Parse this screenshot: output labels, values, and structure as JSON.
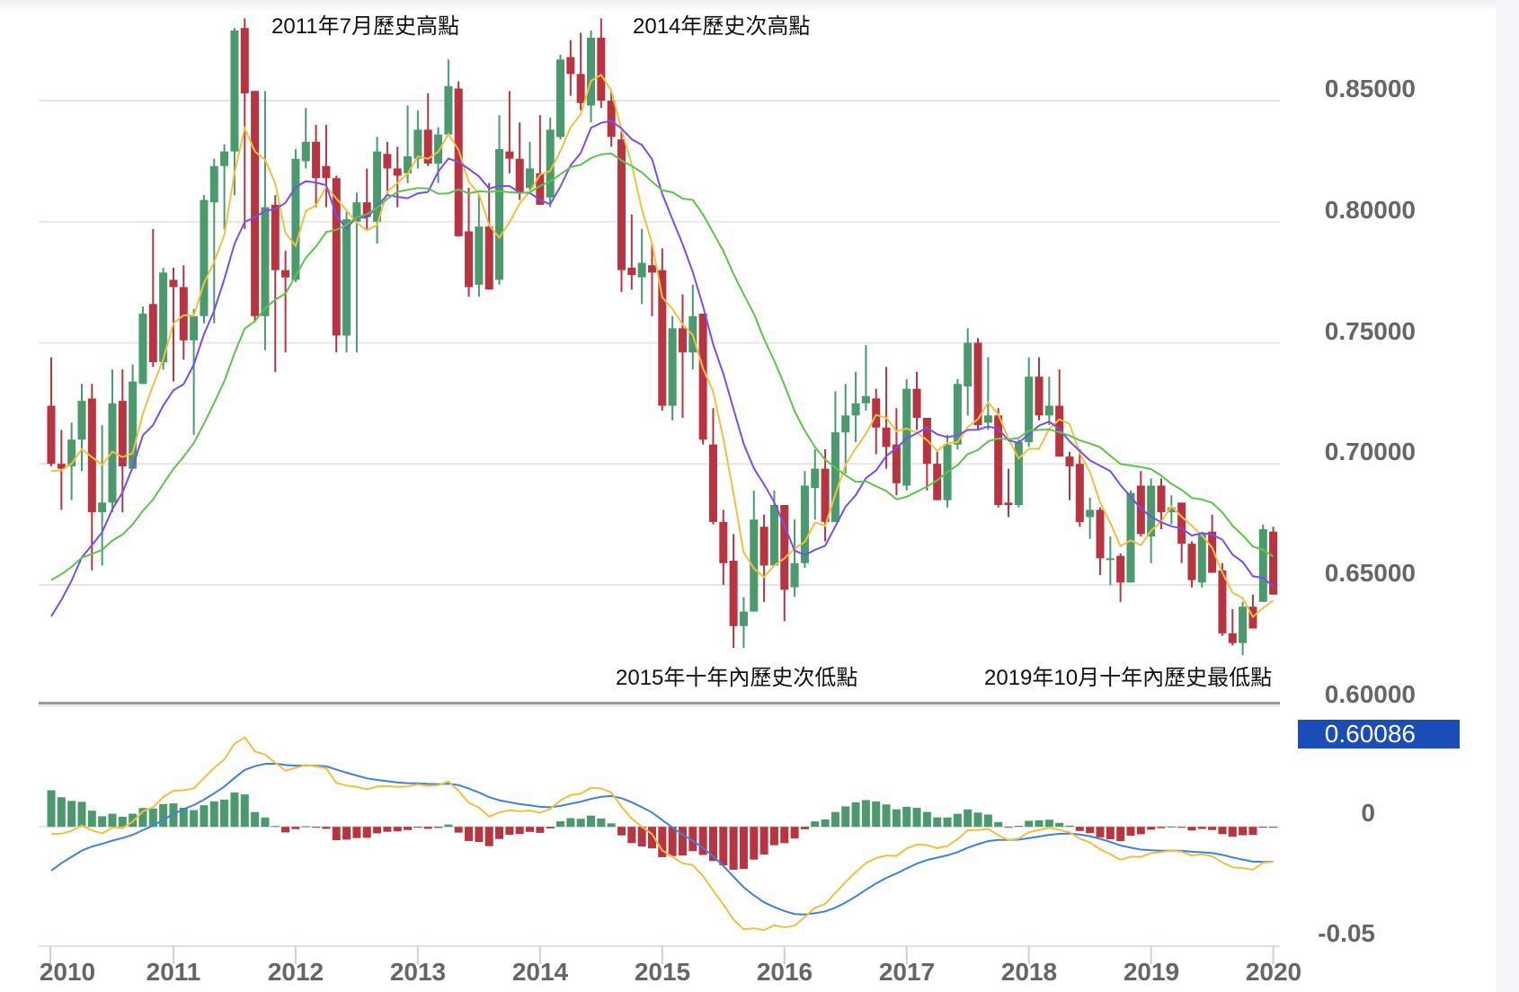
{
  "chart_data": {
    "type": "candlestick",
    "interval": "month",
    "start": "2010-01",
    "end": "2020-01",
    "ohlc_fields": [
      "open",
      "high",
      "low",
      "close"
    ],
    "ohlc": [
      [
        0.724,
        0.744,
        0.699,
        0.7
      ],
      [
        0.7,
        0.714,
        0.681,
        0.698
      ],
      [
        0.699,
        0.717,
        0.685,
        0.71
      ],
      [
        0.71,
        0.733,
        0.697,
        0.726
      ],
      [
        0.727,
        0.733,
        0.656,
        0.68
      ],
      [
        0.68,
        0.716,
        0.658,
        0.684
      ],
      [
        0.684,
        0.739,
        0.68,
        0.725
      ],
      [
        0.726,
        0.739,
        0.68,
        0.699
      ],
      [
        0.698,
        0.741,
        0.698,
        0.734
      ],
      [
        0.733,
        0.765,
        0.733,
        0.762
      ],
      [
        0.766,
        0.797,
        0.74,
        0.742
      ],
      [
        0.742,
        0.781,
        0.739,
        0.779
      ],
      [
        0.776,
        0.781,
        0.734,
        0.773
      ],
      [
        0.773,
        0.782,
        0.743,
        0.751
      ],
      [
        0.751,
        0.764,
        0.712,
        0.761
      ],
      [
        0.761,
        0.811,
        0.758,
        0.809
      ],
      [
        0.808,
        0.826,
        0.758,
        0.823
      ],
      [
        0.823,
        0.832,
        0.797,
        0.829
      ],
      [
        0.829,
        0.88,
        0.811,
        0.879
      ],
      [
        0.88,
        0.884,
        0.797,
        0.853
      ],
      [
        0.854,
        0.854,
        0.759,
        0.761
      ],
      [
        0.761,
        0.854,
        0.747,
        0.806
      ],
      [
        0.807,
        0.811,
        0.738,
        0.78
      ],
      [
        0.78,
        0.788,
        0.746,
        0.777
      ],
      [
        0.776,
        0.83,
        0.775,
        0.826
      ],
      [
        0.825,
        0.847,
        0.822,
        0.833
      ],
      [
        0.833,
        0.84,
        0.806,
        0.818
      ],
      [
        0.823,
        0.84,
        0.806,
        0.818
      ],
      [
        0.818,
        0.819,
        0.746,
        0.753
      ],
      [
        0.753,
        0.804,
        0.746,
        0.801
      ],
      [
        0.8,
        0.812,
        0.746,
        0.808
      ],
      [
        0.808,
        0.822,
        0.797,
        0.802
      ],
      [
        0.8,
        0.835,
        0.791,
        0.829
      ],
      [
        0.828,
        0.833,
        0.811,
        0.822
      ],
      [
        0.822,
        0.831,
        0.806,
        0.819
      ],
      [
        0.82,
        0.848,
        0.816,
        0.827
      ],
      [
        0.826,
        0.846,
        0.822,
        0.838
      ],
      [
        0.838,
        0.853,
        0.823,
        0.824
      ],
      [
        0.824,
        0.839,
        0.816,
        0.836
      ],
      [
        0.836,
        0.867,
        0.836,
        0.856
      ],
      [
        0.855,
        0.858,
        0.794,
        0.794
      ],
      [
        0.796,
        0.814,
        0.769,
        0.773
      ],
      [
        0.774,
        0.811,
        0.769,
        0.798
      ],
      [
        0.798,
        0.816,
        0.772,
        0.772
      ],
      [
        0.776,
        0.844,
        0.774,
        0.83
      ],
      [
        0.829,
        0.854,
        0.82,
        0.826
      ],
      [
        0.826,
        0.841,
        0.809,
        0.812
      ],
      [
        0.814,
        0.833,
        0.813,
        0.822
      ],
      [
        0.82,
        0.844,
        0.807,
        0.807
      ],
      [
        0.81,
        0.843,
        0.806,
        0.838
      ],
      [
        0.835,
        0.869,
        0.834,
        0.867
      ],
      [
        0.868,
        0.875,
        0.852,
        0.861
      ],
      [
        0.861,
        0.878,
        0.846,
        0.849
      ],
      [
        0.848,
        0.879,
        0.841,
        0.876
      ],
      [
        0.876,
        0.884,
        0.847,
        0.85
      ],
      [
        0.85,
        0.854,
        0.831,
        0.835
      ],
      [
        0.834,
        0.839,
        0.771,
        0.78
      ],
      [
        0.781,
        0.803,
        0.772,
        0.778
      ],
      [
        0.777,
        0.797,
        0.766,
        0.783
      ],
      [
        0.782,
        0.791,
        0.761,
        0.779
      ],
      [
        0.78,
        0.789,
        0.722,
        0.724
      ],
      [
        0.724,
        0.761,
        0.718,
        0.756
      ],
      [
        0.756,
        0.77,
        0.719,
        0.746
      ],
      [
        0.746,
        0.774,
        0.739,
        0.761
      ],
      [
        0.762,
        0.762,
        0.708,
        0.71
      ],
      [
        0.708,
        0.723,
        0.675,
        0.676
      ],
      [
        0.676,
        0.681,
        0.65,
        0.659
      ],
      [
        0.66,
        0.671,
        0.624,
        0.633
      ],
      [
        0.633,
        0.645,
        0.624,
        0.639
      ],
      [
        0.639,
        0.689,
        0.639,
        0.677
      ],
      [
        0.674,
        0.679,
        0.643,
        0.658
      ],
      [
        0.658,
        0.689,
        0.658,
        0.683
      ],
      [
        0.683,
        0.683,
        0.635,
        0.648
      ],
      [
        0.649,
        0.677,
        0.645,
        0.659
      ],
      [
        0.659,
        0.697,
        0.657,
        0.691
      ],
      [
        0.69,
        0.706,
        0.677,
        0.698
      ],
      [
        0.698,
        0.706,
        0.668,
        0.676
      ],
      [
        0.676,
        0.73,
        0.676,
        0.713
      ],
      [
        0.713,
        0.733,
        0.696,
        0.72
      ],
      [
        0.72,
        0.738,
        0.709,
        0.725
      ],
      [
        0.725,
        0.749,
        0.722,
        0.728
      ],
      [
        0.727,
        0.731,
        0.704,
        0.715
      ],
      [
        0.715,
        0.74,
        0.698,
        0.707
      ],
      [
        0.708,
        0.723,
        0.687,
        0.692
      ],
      [
        0.691,
        0.735,
        0.689,
        0.731
      ],
      [
        0.731,
        0.738,
        0.714,
        0.719
      ],
      [
        0.719,
        0.719,
        0.689,
        0.7
      ],
      [
        0.7,
        0.705,
        0.685,
        0.685
      ],
      [
        0.685,
        0.712,
        0.682,
        0.708
      ],
      [
        0.708,
        0.735,
        0.706,
        0.733
      ],
      [
        0.732,
        0.756,
        0.72,
        0.75
      ],
      [
        0.75,
        0.752,
        0.714,
        0.716
      ],
      [
        0.717,
        0.744,
        0.714,
        0.72
      ],
      [
        0.72,
        0.723,
        0.682,
        0.683
      ],
      [
        0.684,
        0.698,
        0.678,
        0.683
      ],
      [
        0.683,
        0.71,
        0.682,
        0.709
      ],
      [
        0.709,
        0.744,
        0.707,
        0.736
      ],
      [
        0.736,
        0.744,
        0.718,
        0.72
      ],
      [
        0.72,
        0.736,
        0.716,
        0.724
      ],
      [
        0.724,
        0.739,
        0.703,
        0.703
      ],
      [
        0.703,
        0.705,
        0.685,
        0.699
      ],
      [
        0.7,
        0.706,
        0.674,
        0.676
      ],
      [
        0.678,
        0.686,
        0.669,
        0.681
      ],
      [
        0.681,
        0.682,
        0.654,
        0.661
      ],
      [
        0.661,
        0.67,
        0.65,
        0.661
      ],
      [
        0.662,
        0.663,
        0.643,
        0.651
      ],
      [
        0.651,
        0.689,
        0.651,
        0.688
      ],
      [
        0.691,
        0.697,
        0.67,
        0.671
      ],
      [
        0.67,
        0.694,
        0.659,
        0.691
      ],
      [
        0.691,
        0.694,
        0.673,
        0.68
      ],
      [
        0.68,
        0.687,
        0.675,
        0.682
      ],
      [
        0.684,
        0.684,
        0.659,
        0.667
      ],
      [
        0.667,
        0.668,
        0.649,
        0.652
      ],
      [
        0.651,
        0.672,
        0.649,
        0.671
      ],
      [
        0.672,
        0.679,
        0.655,
        0.655
      ],
      [
        0.656,
        0.659,
        0.629,
        0.63
      ],
      [
        0.63,
        0.64,
        0.625,
        0.626
      ],
      [
        0.626,
        0.643,
        0.621,
        0.641
      ],
      [
        0.641,
        0.646,
        0.632,
        0.632
      ],
      [
        0.643,
        0.675,
        0.643,
        0.673
      ],
      [
        0.672,
        0.674,
        0.646,
        0.646
      ]
    ],
    "moving_averages": [
      {
        "period": 5,
        "start_value": 0.697,
        "color": "#f3c03d"
      },
      {
        "period": 10,
        "start_value": 0.637,
        "color": "#7b4cf2"
      },
      {
        "period": 20,
        "start_value": 0.652,
        "color": "#5cc54a"
      }
    ],
    "macd": {
      "fast": 12,
      "slow": 26,
      "signal": 9,
      "start_dif": -0.003,
      "start_dea": -0.018,
      "dif_color": "#f3c03d",
      "dea_color": "#3b82e0"
    },
    "ylim": [
      0.601,
      0.886
    ],
    "macd_ylim": [
      -0.049,
      0.048
    ],
    "y_ticks": [
      "0.85000",
      "0.80000",
      "0.75000",
      "0.70000",
      "0.65000",
      "0.60000"
    ],
    "macd_ticks": [
      "0",
      "-0.05"
    ],
    "x_ticks": [
      "2010",
      "2011",
      "2012",
      "2013",
      "2014",
      "2015",
      "2016",
      "2017",
      "2018",
      "2019",
      "2020"
    ],
    "cursor_value": "0.60086",
    "annotations": [
      {
        "text": "2011年7月歷史高點",
        "date": "2011-07"
      },
      {
        "text": "2014年歷史次高點",
        "date": "2014-07"
      },
      {
        "text": "2015年十年內歷史次低點",
        "date": "2015-08"
      },
      {
        "text": "2019年10月十年內歷史最低點",
        "date": "2019-10"
      }
    ],
    "colors": {
      "up": "#4a9a6e",
      "down": "#b83441",
      "grid": "#e6e6e6"
    },
    "grid": true
  }
}
